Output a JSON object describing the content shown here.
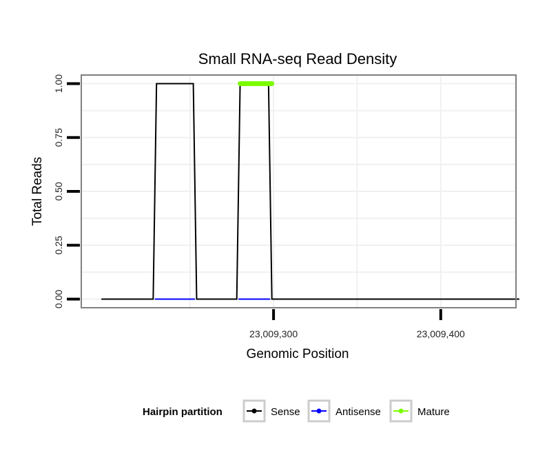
{
  "chart_data": {
    "type": "line",
    "title": "Small RNA-seq Read Density",
    "xlabel": "Genomic Position",
    "ylabel": "Total Reads",
    "xlim": [
      23009185,
      23009445
    ],
    "ylim": [
      -0.04,
      1.04
    ],
    "x_ticks": [
      {
        "value": 23009300,
        "label": "23,009,300"
      },
      {
        "value": 23009400,
        "label": "23,009,400"
      }
    ],
    "y_ticks": [
      {
        "value": 0.0,
        "label": "0.00"
      },
      {
        "value": 0.25,
        "label": "0.25"
      },
      {
        "value": 0.5,
        "label": "0.50"
      },
      {
        "value": 0.75,
        "label": "0.75"
      },
      {
        "value": 1.0,
        "label": "1.00"
      }
    ],
    "grid": true,
    "legend": {
      "title": "Hairpin partition",
      "placement": "bottom",
      "entries": [
        "Sense",
        "Antisense",
        "Mature"
      ]
    },
    "series": [
      {
        "name": "Sense",
        "color": "#000000",
        "x": [
          23009197,
          23009228,
          23009230,
          23009252,
          23009254,
          23009278,
          23009280,
          23009297,
          23009299,
          23009447
        ],
        "y": [
          0,
          0,
          1,
          1,
          0,
          0,
          1,
          1,
          0,
          0
        ]
      },
      {
        "name": "Antisense",
        "color": "#0000ff",
        "x": [
          23009229,
          23009253,
          23009279,
          23009298
        ],
        "y": [
          0,
          0,
          0,
          0
        ],
        "segments": [
          [
            0,
            1
          ],
          [
            2,
            3
          ]
        ]
      },
      {
        "name": "Mature",
        "color": "#7cfc00",
        "x": [
          23009280,
          23009299
        ],
        "y": [
          1,
          1
        ]
      }
    ]
  }
}
